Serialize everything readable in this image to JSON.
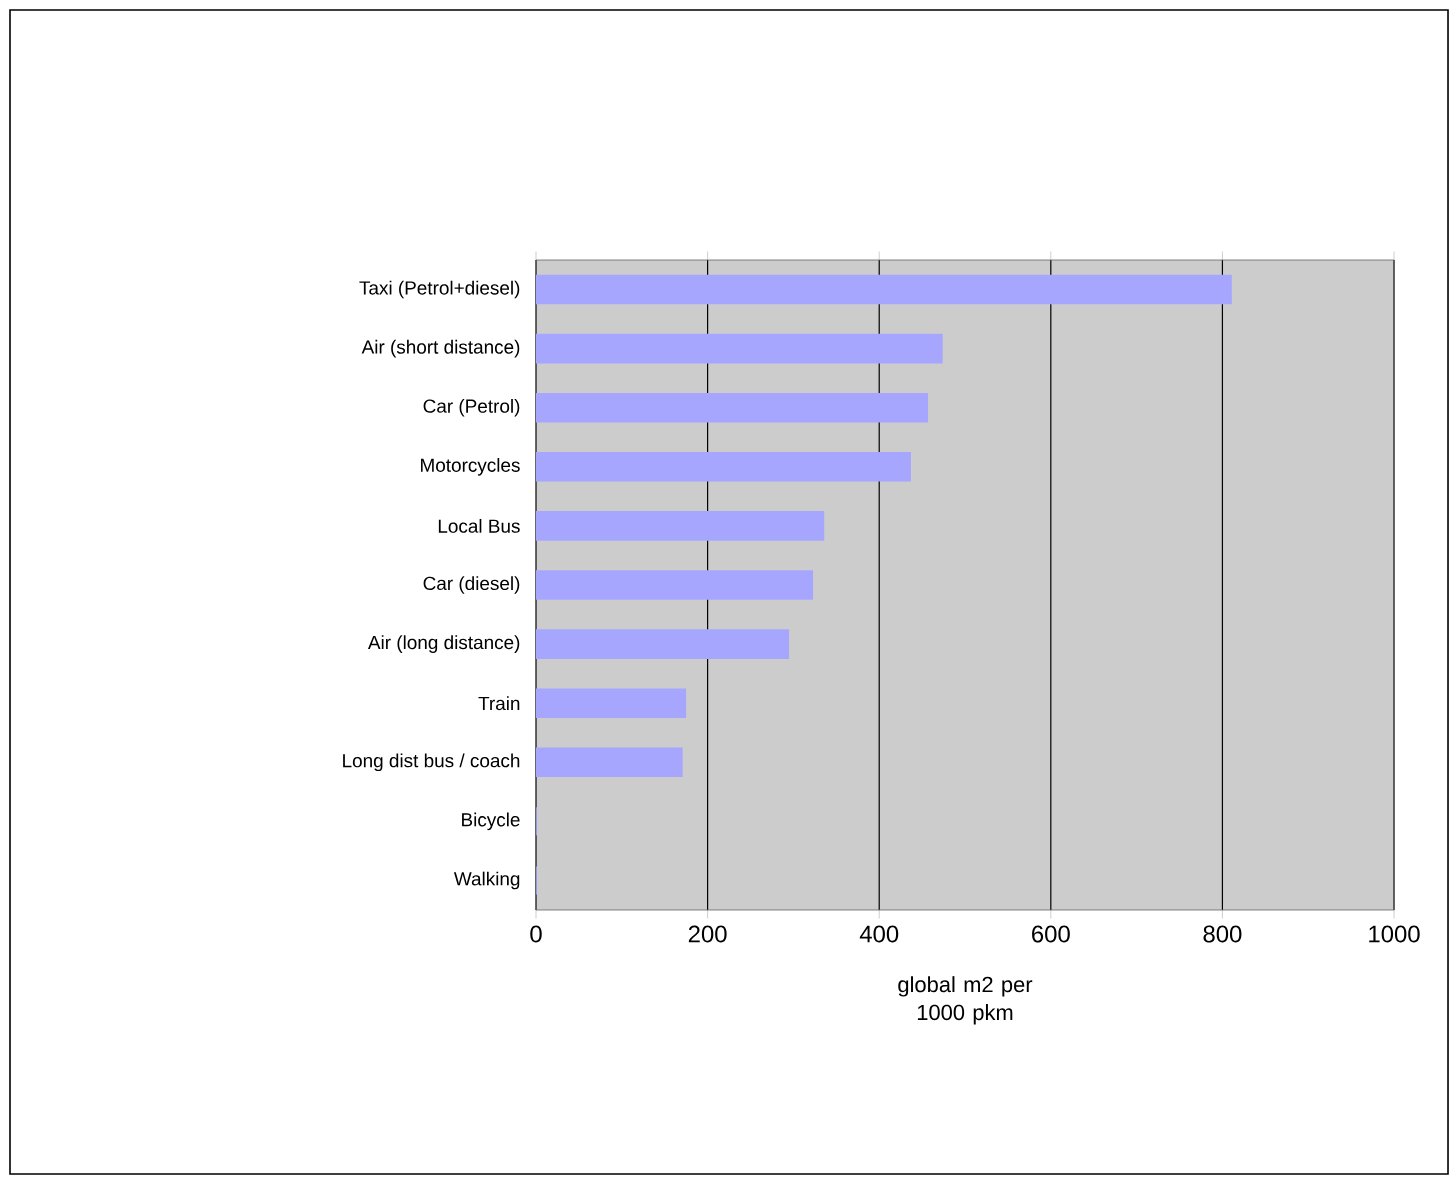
{
  "chart_data": {
    "type": "bar",
    "orientation": "horizontal",
    "xlabel": "global m2 per 1000 pkm",
    "categories": [
      "Taxi (Petrol+diesel)",
      "Air (short distance)",
      "Car (Petrol)",
      "Motorcycles",
      "Local Bus",
      "Car (diesel)",
      "Air (long distance)",
      "Train",
      "Long dist bus / coach",
      "Bicycle",
      "Walking"
    ],
    "values": [
      810,
      473,
      456,
      436,
      335,
      322,
      294,
      174,
      170,
      0,
      0
    ],
    "color": "#a6a6ff",
    "xlim": [
      0,
      1000
    ],
    "xticks": [
      0,
      200,
      400,
      600,
      800,
      1000
    ],
    "grid": "x"
  }
}
